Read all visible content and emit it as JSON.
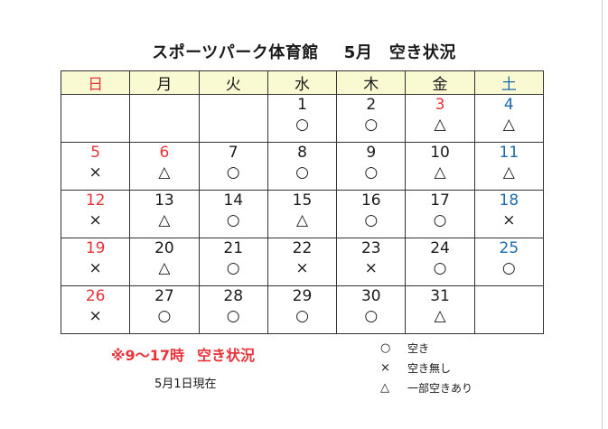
{
  "title": {
    "left": "スポーツパーク体育館",
    "right": "5月　空き状況"
  },
  "colors": {
    "sunday": "#e8333a",
    "saturday": "#1c6ab0",
    "header_bg": "#fafad2",
    "note": "#e8333a"
  },
  "weekdays": [
    {
      "label": "日",
      "color": "red"
    },
    {
      "label": "月",
      "color": ""
    },
    {
      "label": "火",
      "color": ""
    },
    {
      "label": "水",
      "color": ""
    },
    {
      "label": "木",
      "color": ""
    },
    {
      "label": "金",
      "color": ""
    },
    {
      "label": "土",
      "color": "blue"
    }
  ],
  "weeks": [
    [
      {
        "day": "",
        "mark": "",
        "color": ""
      },
      {
        "day": "",
        "mark": "",
        "color": ""
      },
      {
        "day": "",
        "mark": "",
        "color": ""
      },
      {
        "day": "1",
        "mark": "○",
        "color": ""
      },
      {
        "day": "2",
        "mark": "○",
        "color": ""
      },
      {
        "day": "3",
        "mark": "△",
        "color": "red"
      },
      {
        "day": "4",
        "mark": "△",
        "color": "blue"
      }
    ],
    [
      {
        "day": "5",
        "mark": "×",
        "color": "red"
      },
      {
        "day": "6",
        "mark": "△",
        "color": "red"
      },
      {
        "day": "7",
        "mark": "○",
        "color": ""
      },
      {
        "day": "8",
        "mark": "○",
        "color": ""
      },
      {
        "day": "9",
        "mark": "○",
        "color": ""
      },
      {
        "day": "10",
        "mark": "△",
        "color": ""
      },
      {
        "day": "11",
        "mark": "△",
        "color": "blue"
      }
    ],
    [
      {
        "day": "12",
        "mark": "×",
        "color": "red"
      },
      {
        "day": "13",
        "mark": "△",
        "color": ""
      },
      {
        "day": "14",
        "mark": "○",
        "color": ""
      },
      {
        "day": "15",
        "mark": "△",
        "color": ""
      },
      {
        "day": "16",
        "mark": "○",
        "color": ""
      },
      {
        "day": "17",
        "mark": "○",
        "color": ""
      },
      {
        "day": "18",
        "mark": "×",
        "color": "blue"
      }
    ],
    [
      {
        "day": "19",
        "mark": "×",
        "color": "red"
      },
      {
        "day": "20",
        "mark": "△",
        "color": ""
      },
      {
        "day": "21",
        "mark": "○",
        "color": ""
      },
      {
        "day": "22",
        "mark": "×",
        "color": ""
      },
      {
        "day": "23",
        "mark": "×",
        "color": ""
      },
      {
        "day": "24",
        "mark": "○",
        "color": ""
      },
      {
        "day": "25",
        "mark": "○",
        "color": "blue"
      }
    ],
    [
      {
        "day": "26",
        "mark": "×",
        "color": "red"
      },
      {
        "day": "27",
        "mark": "○",
        "color": ""
      },
      {
        "day": "28",
        "mark": "○",
        "color": ""
      },
      {
        "day": "29",
        "mark": "○",
        "color": ""
      },
      {
        "day": "30",
        "mark": "○",
        "color": ""
      },
      {
        "day": "31",
        "mark": "△",
        "color": ""
      },
      {
        "day": "",
        "mark": "",
        "color": ""
      }
    ]
  ],
  "note": {
    "left": "※9〜17時",
    "right": "空き状況"
  },
  "as_of": "5月1日現在",
  "legend": [
    {
      "symbol": "○",
      "label": "空き"
    },
    {
      "symbol": "×",
      "label": "空き無し"
    },
    {
      "symbol": "△",
      "label": "一部空きあり"
    }
  ]
}
